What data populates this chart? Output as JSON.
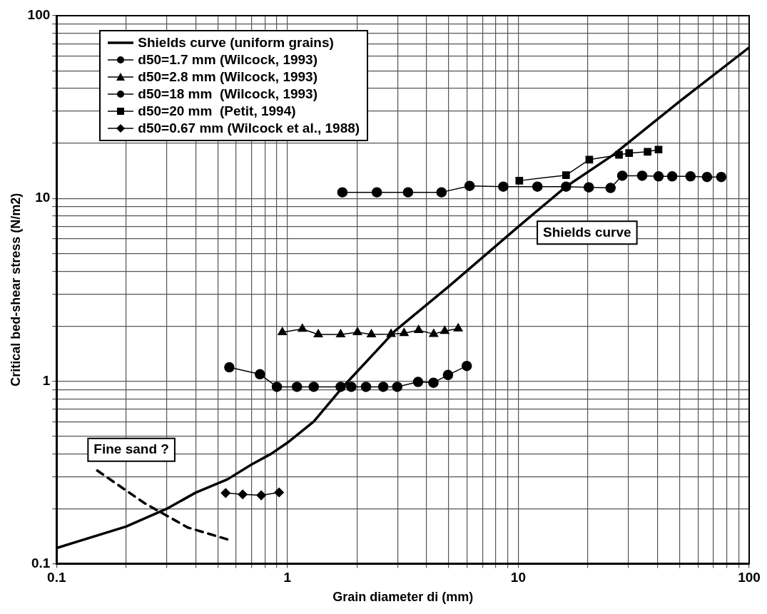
{
  "chart_data": {
    "type": "line",
    "xlabel": "Grain diameter di (mm)",
    "ylabel": "Critical bed-shear stress (N/m2)",
    "log": "xy",
    "grid": true,
    "legend": "top left",
    "xlim": [
      0.1,
      100
    ],
    "ylim": [
      0.1,
      100
    ],
    "xticks": [
      0.1,
      {
        "value": 0.2,
        "label": null
      },
      {
        "value": 0.3,
        "label": null
      },
      {
        "value": 0.4,
        "label": null
      },
      {
        "value": 0.5,
        "label": null
      },
      {
        "value": 0.6,
        "label": null
      },
      {
        "value": 0.7,
        "label": null
      },
      {
        "value": 0.8,
        "label": null
      },
      {
        "value": 0.9,
        "label": null
      },
      1,
      {
        "value": 2,
        "label": null
      },
      {
        "value": 3,
        "label": null
      },
      {
        "value": 4,
        "label": null
      },
      {
        "value": 5,
        "label": null
      },
      {
        "value": 6,
        "label": null
      },
      {
        "value": 7,
        "label": null
      },
      {
        "value": 8,
        "label": null
      },
      {
        "value": 9,
        "label": null
      },
      10,
      {
        "value": 20,
        "label": null
      },
      {
        "value": 30,
        "label": null
      },
      {
        "value": 40,
        "label": null
      },
      {
        "value": 50,
        "label": null
      },
      {
        "value": 60,
        "label": null
      },
      {
        "value": 70,
        "label": null
      },
      {
        "value": 80,
        "label": null
      },
      {
        "value": 90,
        "label": null
      },
      100
    ],
    "yticks": [
      0.1,
      {
        "value": 0.2,
        "label": null
      },
      {
        "value": 0.3,
        "label": null
      },
      {
        "value": 0.4,
        "label": null
      },
      {
        "value": 0.5,
        "label": null
      },
      {
        "value": 0.6,
        "label": null
      },
      {
        "value": 0.7,
        "label": null
      },
      {
        "value": 0.8,
        "label": null
      },
      {
        "value": 0.9,
        "label": null
      },
      1,
      {
        "value": 2,
        "label": null
      },
      {
        "value": 3,
        "label": null
      },
      {
        "value": 4,
        "label": null
      },
      {
        "value": 5,
        "label": null
      },
      {
        "value": 6,
        "label": null
      },
      {
        "value": 7,
        "label": null
      },
      {
        "value": 8,
        "label": null
      },
      {
        "value": 9,
        "label": null
      },
      10,
      {
        "value": 20,
        "label": null
      },
      {
        "value": 30,
        "label": null
      },
      {
        "value": 40,
        "label": null
      },
      {
        "value": 50,
        "label": null
      },
      {
        "value": 60,
        "label": null
      },
      {
        "value": 70,
        "label": null
      },
      {
        "value": 80,
        "label": null
      },
      {
        "value": 90,
        "label": null
      },
      100
    ],
    "series": [
      {
        "name": "Shields curve (uniform grains)",
        "color": "#000000",
        "marker": "none",
        "x": [
          0.1,
          0.2,
          0.3,
          0.4,
          0.55,
          0.7,
          0.85,
          1.0,
          1.3,
          1.74,
          2.92,
          5,
          10,
          16.1,
          25.6,
          50,
          100
        ],
        "values": [
          0.122,
          0.16,
          0.2,
          0.245,
          0.29,
          0.35,
          0.4,
          0.46,
          0.6,
          0.93,
          1.88,
          3.3,
          7.0,
          11.6,
          17.2,
          34,
          67
        ]
      },
      {
        "name": "d50=1.7 mm (Wilcock, 1993)",
        "color": "#000000",
        "marker": "circle",
        "x": [
          0.56,
          0.76,
          0.9,
          1.1,
          1.3,
          1.7,
          1.89,
          2.19,
          2.6,
          2.99,
          3.68,
          4.29,
          4.96,
          5.98
        ],
        "values": [
          1.19,
          1.09,
          0.93,
          0.93,
          0.93,
          0.93,
          0.93,
          0.93,
          0.93,
          0.93,
          0.99,
          0.98,
          1.08,
          1.21
        ]
      },
      {
        "name": "d50=2.8 mm (Wilcock, 1993)",
        "color": "#000000",
        "marker": "triangle",
        "x": [
          0.95,
          1.16,
          1.36,
          1.7,
          2.01,
          2.31,
          2.81,
          3.2,
          3.7,
          4.3,
          4.8,
          5.49
        ],
        "values": [
          1.85,
          1.93,
          1.8,
          1.8,
          1.85,
          1.8,
          1.81,
          1.83,
          1.9,
          1.81,
          1.88,
          1.94
        ]
      },
      {
        "name": "d50=18 mm  (Wilcock, 1993)",
        "color": "#000000",
        "marker": "circle",
        "x": [
          1.73,
          2.44,
          3.33,
          4.65,
          6.15,
          8.61,
          12.1,
          16.1,
          20.2,
          25.1,
          28.2,
          34.4,
          40.5,
          46.4,
          55.7,
          65.7,
          75.7
        ],
        "values": [
          10.8,
          10.8,
          10.8,
          10.8,
          11.7,
          11.6,
          11.6,
          11.6,
          11.5,
          11.4,
          13.3,
          13.3,
          13.2,
          13.2,
          13.2,
          13.1,
          13.1
        ]
      },
      {
        "name": "d50=20 mm  (Petit, 1994)",
        "color": "#000000",
        "marker": "square",
        "x": [
          10.1,
          16.1,
          20.3,
          27.3,
          30.2,
          36.3,
          40.5
        ],
        "values": [
          12.5,
          13.4,
          16.3,
          17.3,
          17.7,
          18.0,
          18.5
        ]
      },
      {
        "name": "d50=0.67 mm (Wilcock et al., 1988)",
        "color": "#000000",
        "marker": "diamond",
        "x": [
          0.54,
          0.64,
          0.77,
          0.92
        ],
        "values": [
          0.244,
          0.24,
          0.237,
          0.246
        ]
      },
      {
        "color": "#000000",
        "marker": "none",
        "line_style": "dashed",
        "x": [
          0.15,
          0.24,
          0.37,
          0.55
        ],
        "values": [
          0.324,
          0.215,
          0.158,
          0.136
        ]
      }
    ],
    "annotations": [
      "Shields curve",
      "Fine sand ?"
    ]
  }
}
